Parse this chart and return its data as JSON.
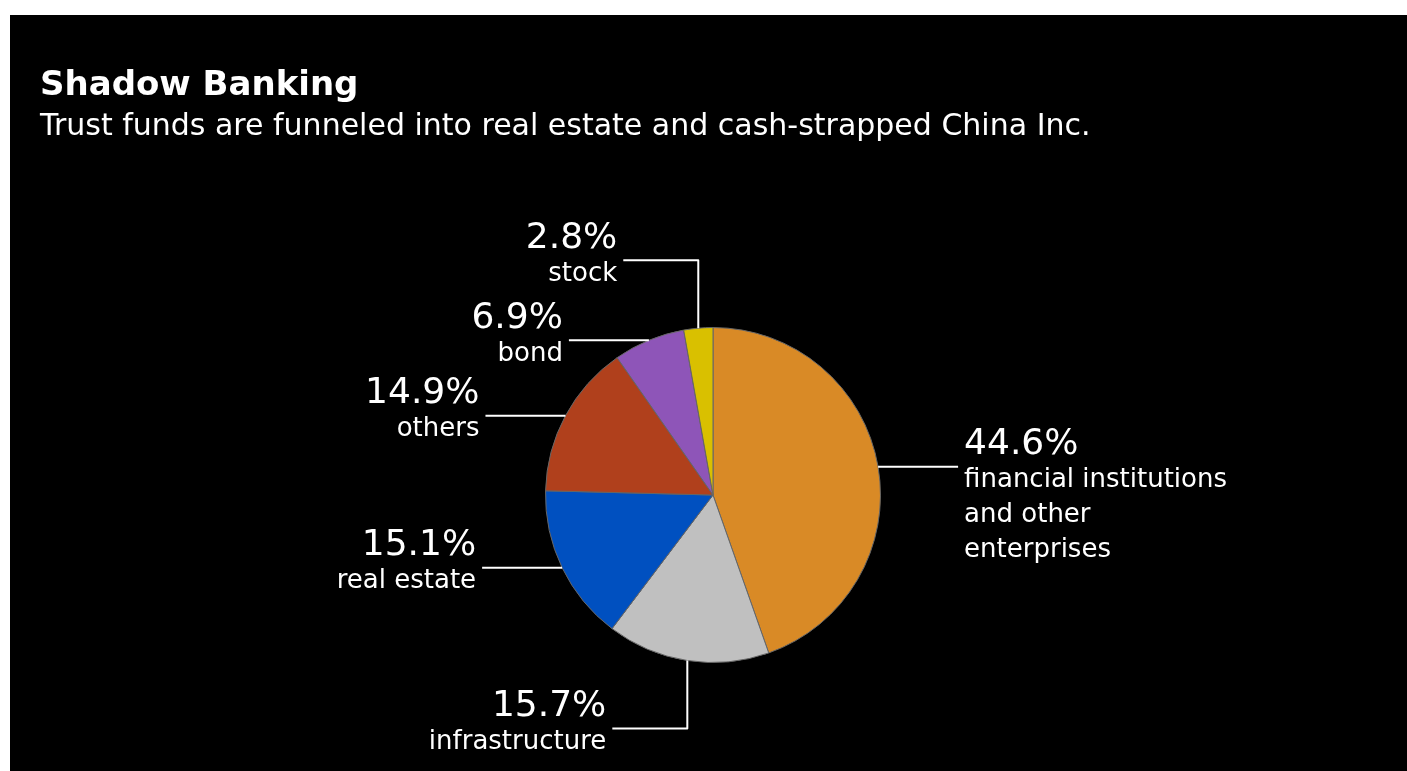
{
  "chart_data": {
    "type": "pie",
    "title": "Shadow Banking",
    "subtitle": "Trust funds are funneled into real estate and cash-strapped China Inc.",
    "categories": [
      "financial institutions\nand other\nenterprises",
      "infrastructure",
      "real estate",
      "others",
      "bond",
      "stock"
    ],
    "values": [
      44.6,
      15.7,
      15.1,
      14.9,
      6.9,
      2.8
    ],
    "value_labels": [
      "44.6%",
      "15.7%",
      "15.1%",
      "14.9%",
      "6.9%",
      "2.8%"
    ],
    "colors": [
      "#d98a26",
      "#c0c0c0",
      "#0050c0",
      "#b0401c",
      "#8e55b8",
      "#d9c000"
    ],
    "legend": false
  }
}
